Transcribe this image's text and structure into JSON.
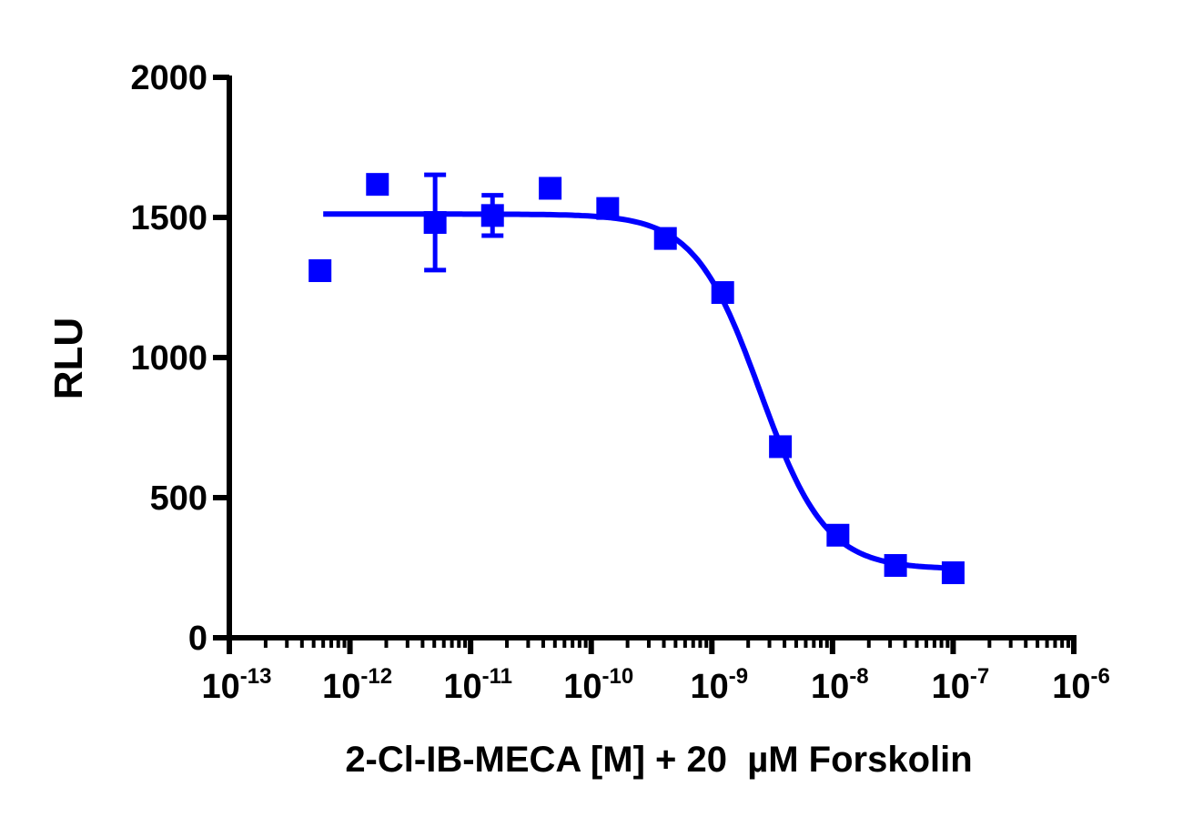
{
  "chart_data": {
    "type": "scatter",
    "title": "",
    "xlabel": "2-Cl-IB-MECA [M] + 20  µM Forskolin",
    "ylabel": "RLU",
    "xscale": "log",
    "xlim": [
      1e-13,
      1e-06
    ],
    "ylim": [
      0,
      2000
    ],
    "grid": false,
    "legend": "none",
    "color": "#0000FF",
    "x_ticks": [
      {
        "base": "10",
        "exp": "-13",
        "value": 1e-13
      },
      {
        "base": "10",
        "exp": "-12",
        "value": 1e-12
      },
      {
        "base": "10",
        "exp": "-11",
        "value": 1e-11
      },
      {
        "base": "10",
        "exp": "-10",
        "value": 1e-10
      },
      {
        "base": "10",
        "exp": "-9",
        "value": 1e-09
      },
      {
        "base": "10",
        "exp": "-8",
        "value": 1e-08
      },
      {
        "base": "10",
        "exp": "-7",
        "value": 1e-07
      },
      {
        "base": "10",
        "exp": "-6",
        "value": 1e-06
      }
    ],
    "y_ticks": [
      "0",
      "500",
      "1000",
      "1500",
      "2000"
    ],
    "series": [
      {
        "marker": "square",
        "x": [
          5.65e-13,
          1.69e-12,
          5.08e-12,
          1.52e-11,
          4.57e-11,
          1.37e-10,
          4.12e-10,
          1.23e-09,
          3.7e-09,
          1.11e-08,
          3.33e-08,
          1e-07
        ],
        "y": [
          1310,
          1618,
          1482,
          1507,
          1604,
          1532,
          1425,
          1232,
          682,
          366,
          258,
          232
        ],
        "err": [
          20,
          25,
          170,
          72,
          10,
          10,
          10,
          10,
          10,
          12,
          10,
          10
        ]
      }
    ],
    "fit": {
      "model": "sigmoidal dose-response",
      "top": 1512,
      "bottom": 245,
      "logIC50": -8.6,
      "hill": -1.6,
      "x_range": [
        6e-13,
        1e-07
      ]
    }
  }
}
